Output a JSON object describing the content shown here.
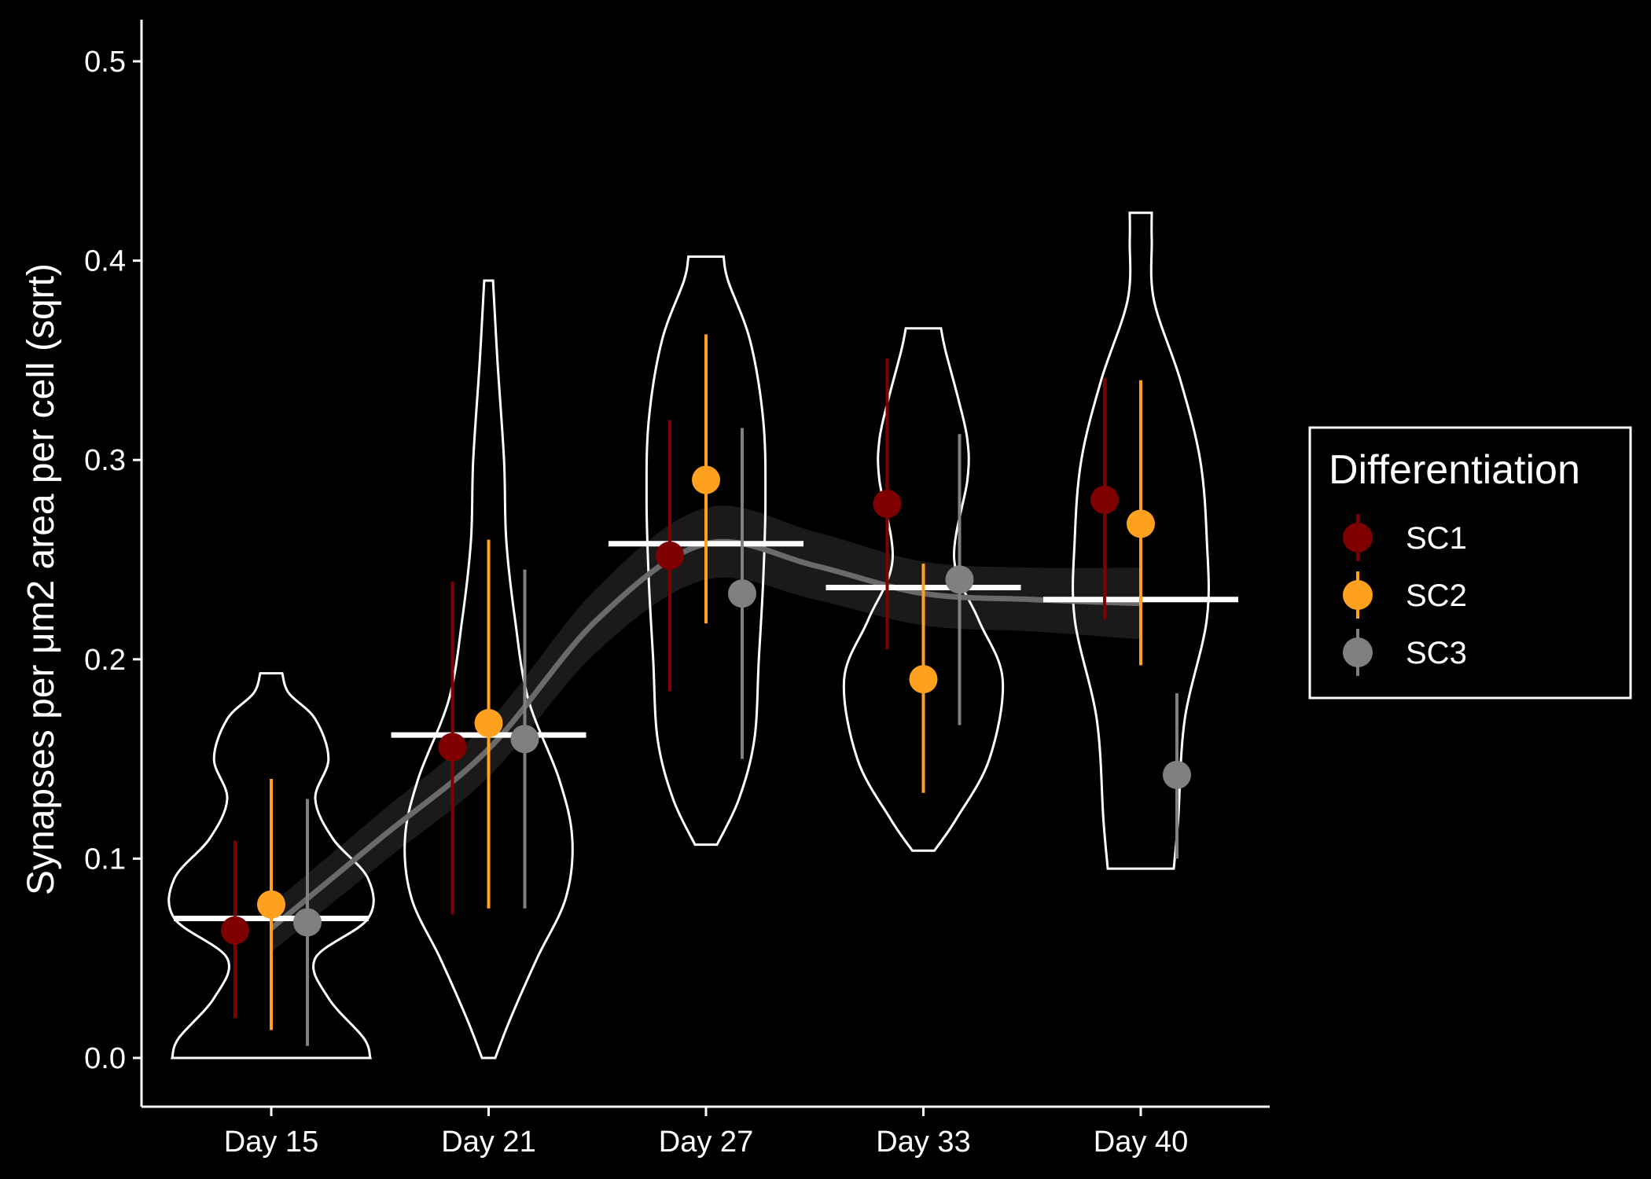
{
  "chart_data": {
    "type": "violin",
    "xlabel": "",
    "ylabel": "Synapses per μm2 area per cell (sqrt)",
    "ylim": [
      -0.025,
      0.52
    ],
    "yticks": [
      0.0,
      0.1,
      0.2,
      0.3,
      0.4,
      0.5
    ],
    "ytick_labels": [
      "0.0",
      "0.1",
      "0.2",
      "0.3",
      "0.4",
      "0.5"
    ],
    "categories": [
      "Day 15",
      "Day 21",
      "Day 27",
      "Day 33",
      "Day 40"
    ],
    "grid": false,
    "legend": {
      "title": "Differentiation",
      "position": "right",
      "entries": [
        {
          "name": "SC1",
          "color": "#7f0000"
        },
        {
          "name": "SC2",
          "color": "#ffa01e"
        },
        {
          "name": "SC3",
          "color": "#808080"
        }
      ]
    },
    "medians": [
      0.07,
      0.162,
      0.258,
      0.236,
      0.23
    ],
    "violins": [
      {
        "category": "Day 15",
        "min": 0.0,
        "max": 0.193,
        "profile": [
          [
            0.0,
            0.45
          ],
          [
            0.01,
            0.42
          ],
          [
            0.03,
            0.26
          ],
          [
            0.05,
            0.2
          ],
          [
            0.07,
            0.44
          ],
          [
            0.09,
            0.44
          ],
          [
            0.11,
            0.28
          ],
          [
            0.13,
            0.2
          ],
          [
            0.15,
            0.26
          ],
          [
            0.17,
            0.2
          ],
          [
            0.183,
            0.08
          ],
          [
            0.193,
            0.05
          ]
        ]
      },
      {
        "category": "Day 21",
        "min": 0.0,
        "max": 0.39,
        "profile": [
          [
            0.0,
            0.03
          ],
          [
            0.02,
            0.1
          ],
          [
            0.05,
            0.22
          ],
          [
            0.08,
            0.35
          ],
          [
            0.11,
            0.38
          ],
          [
            0.14,
            0.32
          ],
          [
            0.18,
            0.18
          ],
          [
            0.22,
            0.12
          ],
          [
            0.26,
            0.08
          ],
          [
            0.3,
            0.07
          ],
          [
            0.35,
            0.04
          ],
          [
            0.39,
            0.02
          ]
        ]
      },
      {
        "category": "Day 27",
        "min": 0.107,
        "max": 0.402,
        "profile": [
          [
            0.107,
            0.05
          ],
          [
            0.13,
            0.15
          ],
          [
            0.16,
            0.22
          ],
          [
            0.2,
            0.24
          ],
          [
            0.24,
            0.26
          ],
          [
            0.28,
            0.27
          ],
          [
            0.32,
            0.26
          ],
          [
            0.36,
            0.2
          ],
          [
            0.39,
            0.1
          ],
          [
            0.402,
            0.08
          ]
        ]
      },
      {
        "category": "Day 33",
        "min": 0.104,
        "max": 0.366,
        "profile": [
          [
            0.104,
            0.05
          ],
          [
            0.12,
            0.15
          ],
          [
            0.15,
            0.3
          ],
          [
            0.19,
            0.36
          ],
          [
            0.22,
            0.25
          ],
          [
            0.25,
            0.14
          ],
          [
            0.29,
            0.2
          ],
          [
            0.31,
            0.2
          ],
          [
            0.33,
            0.16
          ],
          [
            0.355,
            0.1
          ],
          [
            0.366,
            0.08
          ]
        ]
      },
      {
        "category": "Day 40",
        "min": 0.095,
        "max": 0.424,
        "profile": [
          [
            0.095,
            0.15
          ],
          [
            0.12,
            0.17
          ],
          [
            0.17,
            0.2
          ],
          [
            0.22,
            0.3
          ],
          [
            0.26,
            0.3
          ],
          [
            0.3,
            0.27
          ],
          [
            0.34,
            0.18
          ],
          [
            0.38,
            0.06
          ],
          [
            0.41,
            0.05
          ],
          [
            0.424,
            0.05
          ]
        ]
      }
    ],
    "series": [
      {
        "name": "SC1",
        "color": "#7f0000",
        "points": [
          {
            "category": "Day 15",
            "y": 0.064,
            "lo": 0.02,
            "hi": 0.109
          },
          {
            "category": "Day 21",
            "y": 0.156,
            "lo": 0.072,
            "hi": 0.239
          },
          {
            "category": "Day 27",
            "y": 0.252,
            "lo": 0.184,
            "hi": 0.32
          },
          {
            "category": "Day 33",
            "y": 0.278,
            "lo": 0.205,
            "hi": 0.351
          },
          {
            "category": "Day 40",
            "y": 0.28,
            "lo": 0.22,
            "hi": 0.341
          }
        ]
      },
      {
        "name": "SC2",
        "color": "#ffa01e",
        "points": [
          {
            "category": "Day 15",
            "y": 0.077,
            "lo": 0.014,
            "hi": 0.14
          },
          {
            "category": "Day 21",
            "y": 0.168,
            "lo": 0.075,
            "hi": 0.26
          },
          {
            "category": "Day 27",
            "y": 0.29,
            "lo": 0.218,
            "hi": 0.363
          },
          {
            "category": "Day 33",
            "y": 0.19,
            "lo": 0.133,
            "hi": 0.248
          },
          {
            "category": "Day 40",
            "y": 0.268,
            "lo": 0.197,
            "hi": 0.34
          }
        ]
      },
      {
        "name": "SC3",
        "color": "#808080",
        "points": [
          {
            "category": "Day 15",
            "y": 0.068,
            "lo": 0.006,
            "hi": 0.13
          },
          {
            "category": "Day 21",
            "y": 0.16,
            "lo": 0.075,
            "hi": 0.245
          },
          {
            "category": "Day 27",
            "y": 0.233,
            "lo": 0.15,
            "hi": 0.316
          },
          {
            "category": "Day 33",
            "y": 0.24,
            "lo": 0.167,
            "hi": 0.313
          },
          {
            "category": "Day 40",
            "y": 0.142,
            "lo": 0.1,
            "hi": 0.183
          }
        ]
      }
    ],
    "trend": {
      "x": [
        0,
        0.5,
        1,
        1.5,
        2,
        2.5,
        3,
        3.5,
        4
      ],
      "y": [
        0.065,
        0.11,
        0.155,
        0.22,
        0.258,
        0.247,
        0.233,
        0.23,
        0.228
      ],
      "band": [
        0.012,
        0.013,
        0.014,
        0.016,
        0.018,
        0.017,
        0.016,
        0.016,
        0.018
      ]
    }
  }
}
